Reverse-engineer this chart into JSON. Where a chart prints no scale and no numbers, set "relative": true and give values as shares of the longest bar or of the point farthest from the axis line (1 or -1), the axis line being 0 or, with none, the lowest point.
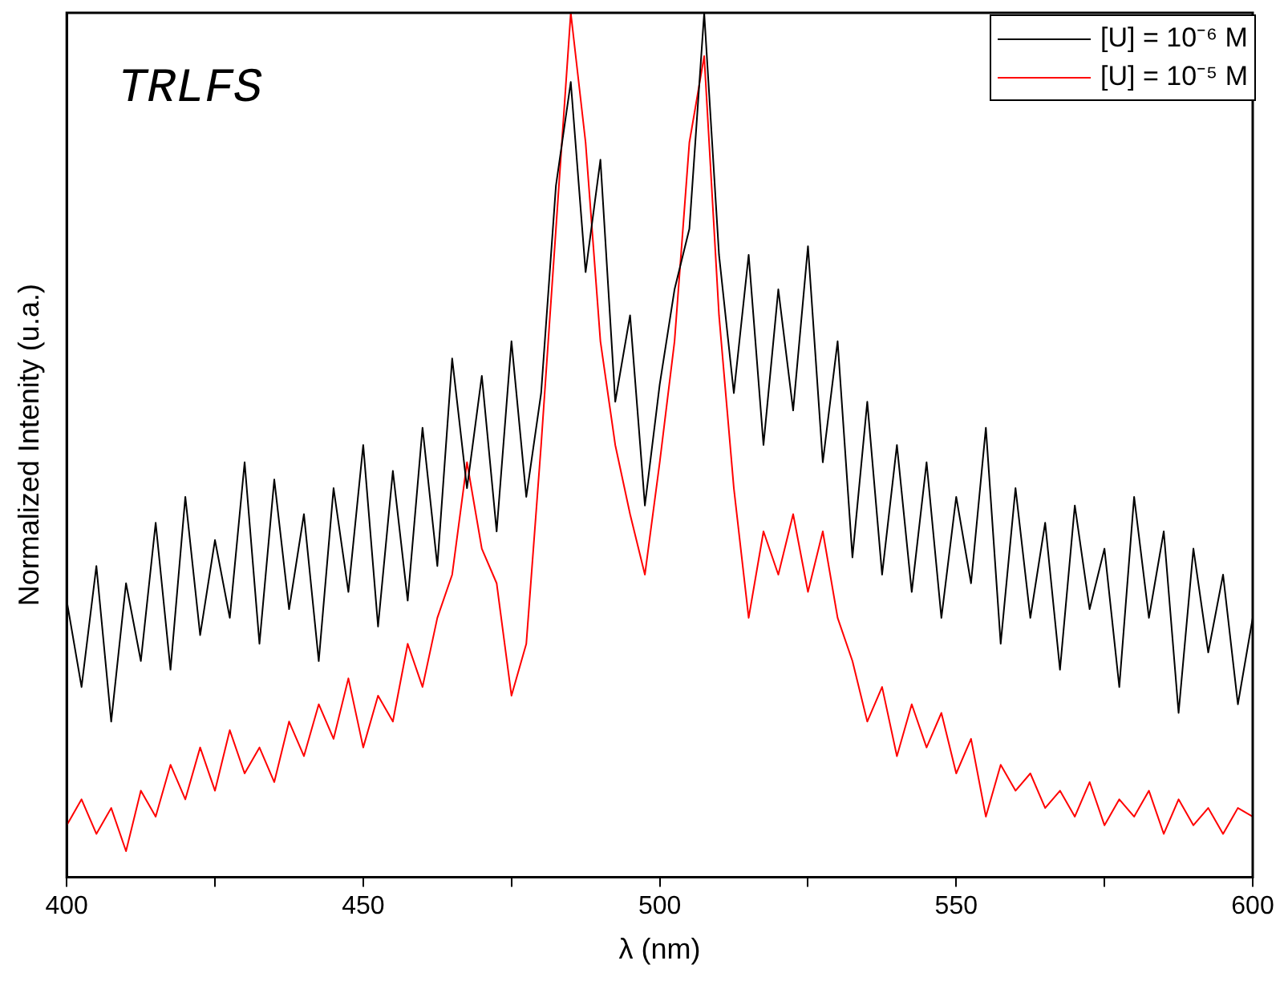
{
  "chart_data": {
    "type": "line",
    "relative": true,
    "xlabel": "λ (nm)",
    "ylabel": "Normalized Intenity (u.a.)",
    "annotations": [
      "TRLFS"
    ],
    "xlim": [
      400,
      600
    ],
    "xticks": [
      400,
      {
        "value": 425,
        "label": null
      },
      450,
      {
        "value": 475,
        "label": null
      },
      500,
      {
        "value": 525,
        "label": null
      },
      550,
      {
        "value": 575,
        "label": null
      },
      600
    ],
    "legend": "top right",
    "grid": false,
    "marker": "none",
    "line_style": "solid",
    "x": [
      400,
      402.5,
      405,
      407.5,
      410,
      412.5,
      415,
      417.5,
      420,
      422.5,
      425,
      427.5,
      430,
      432.5,
      435,
      437.5,
      440,
      442.5,
      445,
      447.5,
      450,
      452.5,
      455,
      457.5,
      460,
      462.5,
      465,
      467.5,
      470,
      472.5,
      475,
      477.5,
      480,
      482.5,
      485,
      487.5,
      490,
      492.5,
      495,
      497.5,
      500,
      502.5,
      505,
      507.5,
      510,
      512.5,
      515,
      517.5,
      520,
      522.5,
      525,
      527.5,
      530,
      532.5,
      535,
      537.5,
      540,
      542.5,
      545,
      547.5,
      550,
      552.5,
      555,
      557.5,
      560,
      562.5,
      565,
      567.5,
      570,
      572.5,
      575,
      577.5,
      580,
      582.5,
      585,
      587.5,
      590,
      592.5,
      595,
      597.5,
      600
    ],
    "series": [
      {
        "name": "[U] = 10⁻⁶ M",
        "color": "#000000",
        "values": [
          0.32,
          0.22,
          0.36,
          0.18,
          0.34,
          0.25,
          0.41,
          0.24,
          0.44,
          0.28,
          0.39,
          0.3,
          0.48,
          0.27,
          0.46,
          0.31,
          0.42,
          0.25,
          0.45,
          0.33,
          0.5,
          0.29,
          0.47,
          0.32,
          0.52,
          0.36,
          0.6,
          0.45,
          0.58,
          0.4,
          0.62,
          0.44,
          0.56,
          0.8,
          0.92,
          0.7,
          0.83,
          0.55,
          0.65,
          0.43,
          0.57,
          0.68,
          0.75,
          1.0,
          0.72,
          0.56,
          0.72,
          0.5,
          0.68,
          0.54,
          0.73,
          0.48,
          0.62,
          0.37,
          0.55,
          0.35,
          0.5,
          0.33,
          0.48,
          0.3,
          0.44,
          0.34,
          0.52,
          0.27,
          0.45,
          0.3,
          0.41,
          0.24,
          0.43,
          0.31,
          0.38,
          0.22,
          0.44,
          0.3,
          0.4,
          0.19,
          0.38,
          0.26,
          0.35,
          0.2,
          0.3
        ]
      },
      {
        "name": "[U] = 10⁻⁵ M",
        "color": "#ff0000",
        "values": [
          0.06,
          0.09,
          0.05,
          0.08,
          0.03,
          0.1,
          0.07,
          0.13,
          0.09,
          0.15,
          0.1,
          0.17,
          0.12,
          0.15,
          0.11,
          0.18,
          0.14,
          0.2,
          0.16,
          0.23,
          0.15,
          0.21,
          0.18,
          0.27,
          0.22,
          0.3,
          0.35,
          0.48,
          0.38,
          0.34,
          0.21,
          0.27,
          0.5,
          0.75,
          1.0,
          0.85,
          0.62,
          0.5,
          0.42,
          0.35,
          0.48,
          0.62,
          0.85,
          0.95,
          0.65,
          0.45,
          0.3,
          0.4,
          0.35,
          0.42,
          0.33,
          0.4,
          0.3,
          0.25,
          0.18,
          0.22,
          0.14,
          0.2,
          0.15,
          0.19,
          0.12,
          0.16,
          0.07,
          0.13,
          0.1,
          0.12,
          0.08,
          0.1,
          0.07,
          0.11,
          0.06,
          0.09,
          0.07,
          0.1,
          0.05,
          0.09,
          0.06,
          0.08,
          0.05,
          0.08,
          0.07
        ]
      }
    ]
  }
}
